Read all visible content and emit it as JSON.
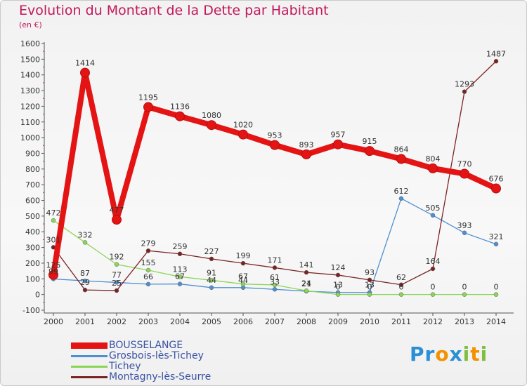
{
  "title": "Evolution du Montant de la Dette par Habitant",
  "unit": "(en €)",
  "brand": "Proxiti",
  "chart_data": {
    "type": "line",
    "x": [
      "2000",
      "2001",
      "2002",
      "2003",
      "2004",
      "2005",
      "2006",
      "2007",
      "2008",
      "2009",
      "2010",
      "2011",
      "2012",
      "2013",
      "2014"
    ],
    "ylim": [
      -100,
      1600
    ],
    "yticks": [
      -100,
      0,
      100,
      200,
      300,
      400,
      500,
      600,
      700,
      800,
      900,
      1000,
      1100,
      1200,
      1300,
      1400,
      1500,
      1600
    ],
    "grid": false,
    "legend_position": "bottom-left",
    "series": [
      {
        "name": "BOUSSELANGE",
        "color": "#e41414",
        "values": [
          125,
          1414,
          477,
          1195,
          1136,
          1080,
          1020,
          953,
          893,
          957,
          915,
          864,
          804,
          770,
          676
        ],
        "labels": [
          "125",
          "1414",
          "477",
          "1195",
          "1136",
          "1080",
          "1020",
          "953",
          "893",
          "957",
          "915",
          "864",
          "804",
          "770",
          "676"
        ]
      },
      {
        "name": "Grosbois-lès-Tichey",
        "color": "#4f8fcf",
        "values": [
          99,
          87,
          77,
          66,
          67,
          44,
          44,
          33,
          21,
          13,
          13,
          612,
          505,
          393,
          321
        ],
        "labels": [
          "99",
          "87",
          "77",
          "66",
          "67",
          "44",
          "44",
          "33",
          "21",
          "13",
          "13",
          "612",
          "505",
          "393",
          "321"
        ]
      },
      {
        "name": "Tichey",
        "color": "#8ad654",
        "values": [
          472,
          332,
          192,
          155,
          113,
          91,
          67,
          61,
          24,
          0,
          0,
          0,
          0,
          0,
          0
        ],
        "labels": [
          "472",
          "332",
          "192",
          "155",
          "113",
          "91",
          "67",
          "61",
          "24",
          "0",
          "0",
          "0",
          "0",
          "0",
          "0"
        ]
      },
      {
        "name": "Montagny-lès-Seurre",
        "color": "#7a2323",
        "values": [
          301,
          29,
          25,
          279,
          259,
          227,
          199,
          171,
          141,
          124,
          93,
          62,
          164,
          1293,
          1487
        ],
        "labels": [
          "301",
          "29",
          "25",
          "279",
          "259",
          "227",
          "199",
          "171",
          "141",
          "124",
          "93",
          "62",
          "164",
          "1293",
          "1487"
        ]
      }
    ]
  }
}
